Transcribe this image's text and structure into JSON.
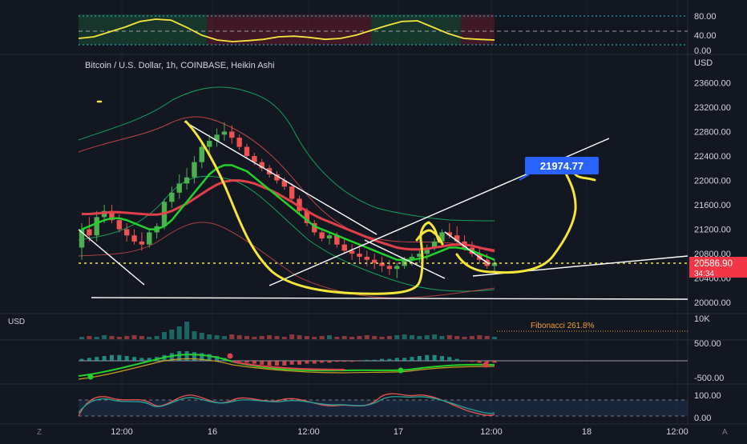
{
  "symbol_title": "Bitcoin / U.S. Dollar, 1h, COINBASE, Heikin Ashi",
  "currency_top": "USD",
  "currency_volume": "USD",
  "bottom_left_badge": "Z",
  "bottom_right_badge": "A",
  "price_label": {
    "price": "20586.90",
    "countdown": "34:34"
  },
  "target_label": "21974.77",
  "fib_label": "Fibonacci 261.8%",
  "colors": {
    "bg": "#131722",
    "grid": "#1e222d",
    "up": "#26a69a",
    "up_bright": "#4caf50",
    "down": "#ef5350",
    "ema_fast": "#22d22b",
    "ema_slow": "#e0404a",
    "bb": "#d24848",
    "bb_green": "#14a05a",
    "trend": "#ffffff",
    "drawing": "#f5e53a",
    "price_line": "#f5e53a",
    "target_bg": "#2962ff",
    "price_bg": "#f23645"
  },
  "chart_data": [
    {
      "name": "main",
      "type": "candlestick",
      "title": "Bitcoin / U.S. Dollar, 1h, COINBASE, Heikin Ashi",
      "ylabel": "USD",
      "ylim": [
        19950,
        23750
      ],
      "y_ticks": [
        "23600.00",
        "23200.00",
        "22800.00",
        "22400.00",
        "22000.00",
        "21600.00",
        "21200.00",
        "20800.00",
        "20400.00",
        "20000.00"
      ],
      "x_ticks": [
        "12:00",
        "16",
        "12:00",
        "17",
        "12:00",
        "18",
        "12:00"
      ],
      "last_price": 20586.9,
      "target_price": 21974.77,
      "candles": [
        [
          20900,
          21300,
          20700,
          21200
        ],
        [
          21200,
          21400,
          21000,
          21100
        ],
        [
          21100,
          21500,
          21000,
          21400
        ],
        [
          21400,
          21600,
          21300,
          21500
        ],
        [
          21500,
          21600,
          21300,
          21350
        ],
        [
          21350,
          21450,
          21150,
          21200
        ],
        [
          21200,
          21300,
          21000,
          21100
        ],
        [
          21100,
          21200,
          20950,
          21000
        ],
        [
          21000,
          21150,
          20850,
          20950
        ],
        [
          20950,
          21200,
          20900,
          21150
        ],
        [
          21150,
          21300,
          21050,
          21250
        ],
        [
          21250,
          21700,
          21200,
          21650
        ],
        [
          21650,
          21900,
          21550,
          21800
        ],
        [
          21800,
          22100,
          21700,
          21950
        ],
        [
          21950,
          22200,
          21850,
          22050
        ],
        [
          22050,
          22400,
          21950,
          22300
        ],
        [
          22300,
          22650,
          22200,
          22550
        ],
        [
          22550,
          22750,
          22450,
          22650
        ],
        [
          22650,
          22850,
          22550,
          22750
        ],
        [
          22750,
          22950,
          22650,
          22800
        ],
        [
          22800,
          22900,
          22600,
          22700
        ],
        [
          22700,
          22750,
          22500,
          22550
        ],
        [
          22550,
          22600,
          22350,
          22400
        ],
        [
          22400,
          22450,
          22250,
          22300
        ],
        [
          22300,
          22350,
          22150,
          22200
        ],
        [
          22200,
          22250,
          22050,
          22100
        ],
        [
          22100,
          22150,
          21950,
          22000
        ],
        [
          22000,
          22050,
          21850,
          21900
        ],
        [
          21900,
          21950,
          21650,
          21700
        ],
        [
          21700,
          21750,
          21450,
          21500
        ],
        [
          21500,
          21550,
          21250,
          21300
        ],
        [
          21300,
          21350,
          21100,
          21150
        ],
        [
          21150,
          21200,
          21000,
          21050
        ],
        [
          21050,
          21150,
          20950,
          21100
        ],
        [
          21100,
          21150,
          20900,
          20950
        ],
        [
          20950,
          21050,
          20800,
          20850
        ],
        [
          20850,
          20950,
          20700,
          20800
        ],
        [
          20800,
          20900,
          20650,
          20750
        ],
        [
          20750,
          20850,
          20600,
          20700
        ],
        [
          20700,
          20800,
          20550,
          20650
        ],
        [
          20650,
          20750,
          20500,
          20600
        ],
        [
          20600,
          20700,
          20450,
          20550
        ],
        [
          20550,
          20650,
          20400,
          20600
        ],
        [
          20600,
          20750,
          20550,
          20700
        ],
        [
          20700,
          20800,
          20600,
          20750
        ],
        [
          20750,
          20850,
          20650,
          20800
        ],
        [
          20800,
          20950,
          20700,
          20900
        ],
        [
          20900,
          21050,
          20850,
          21000
        ],
        [
          21000,
          21200,
          20950,
          21150
        ],
        [
          21150,
          21300,
          21050,
          21100
        ],
        [
          21100,
          21250,
          20950,
          21000
        ],
        [
          21000,
          21100,
          20850,
          20900
        ],
        [
          20900,
          21000,
          20750,
          20800
        ],
        [
          20800,
          20900,
          20650,
          20700
        ],
        [
          20700,
          20800,
          20550,
          20600
        ],
        [
          20600,
          20700,
          20500,
          20650
        ]
      ],
      "lines": [
        {
          "name": "ema_fast",
          "values": [
            21200,
            21250,
            21300,
            21350,
            21380,
            21380,
            21350,
            21300,
            21250,
            21200,
            21200,
            21250,
            21350,
            21500,
            21650,
            21800,
            21950,
            22100,
            22200,
            22250,
            22250,
            22200,
            22150,
            22050,
            21950,
            21850,
            21750,
            21650,
            21550,
            21450,
            21350,
            21250,
            21200,
            21150,
            21100,
            21050,
            21000,
            20950,
            20900,
            20850,
            20800,
            20750,
            20700,
            20700,
            20700,
            20720,
            20750,
            20800,
            20850,
            20900,
            20900,
            20880,
            20850,
            20800,
            20750,
            20700
          ]
        },
        {
          "name": "ema_slow",
          "values": [
            21450,
            21450,
            21460,
            21470,
            21480,
            21480,
            21470,
            21460,
            21450,
            21440,
            21440,
            21460,
            21500,
            21560,
            21620,
            21700,
            21780,
            21860,
            21930,
            21980,
            22000,
            22000,
            21980,
            21950,
            21900,
            21850,
            21790,
            21720,
            21650,
            21570,
            21500,
            21430,
            21370,
            21320,
            21270,
            21220,
            21170,
            21120,
            21070,
            21020,
            20980,
            20940,
            20900,
            20880,
            20870,
            20870,
            20880,
            20900,
            20920,
            20940,
            20950,
            20950,
            20930,
            20900,
            20870,
            20840
          ]
        }
      ]
    },
    {
      "name": "top_oscillator",
      "type": "line",
      "ylim": [
        0,
        100
      ],
      "y_ticks": [
        "80.00",
        "40.00",
        "0.00"
      ],
      "values": [
        25,
        30,
        45,
        60,
        78,
        85,
        82,
        60,
        35,
        20,
        15,
        18,
        22,
        30,
        32,
        28,
        22,
        25,
        35,
        50,
        65,
        78,
        80,
        60,
        40,
        25,
        22,
        20
      ]
    },
    {
      "name": "volume",
      "type": "bar",
      "ylabel": "USD",
      "y_ticks": [
        "10K"
      ]
    },
    {
      "name": "macd",
      "type": "line",
      "y_ticks": [
        "500.00",
        "-500.00"
      ]
    },
    {
      "name": "stochastic",
      "type": "line",
      "ylim": [
        0,
        100
      ],
      "y_ticks": [
        "100.00",
        "0.00"
      ]
    }
  ]
}
